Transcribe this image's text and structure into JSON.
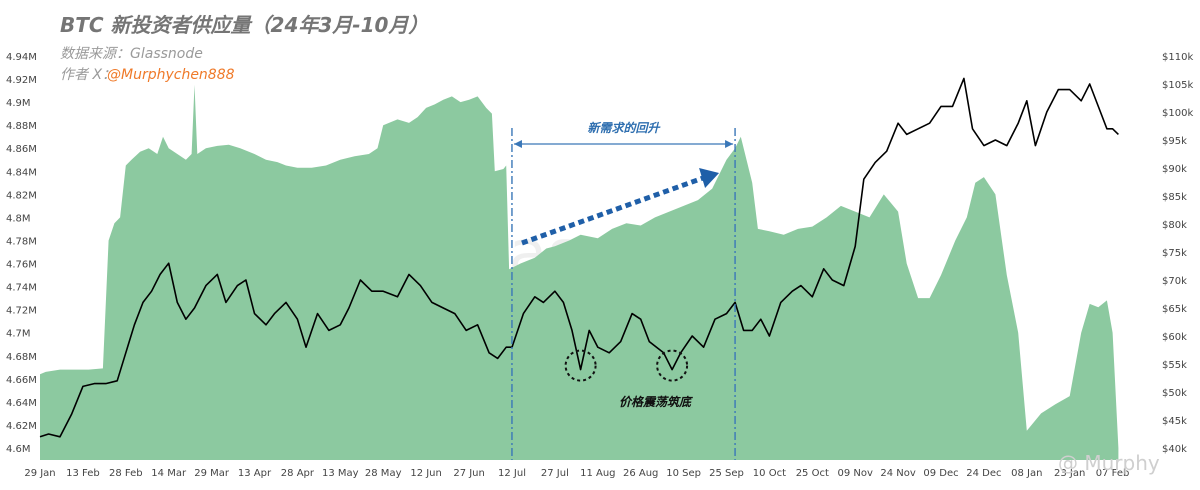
{
  "chart_data": {
    "type": "area",
    "title": "BTC 新投资者供应量（24年3月-10月）",
    "source_label": "数据来源：Glassnode",
    "author_prefix": "作者 X：",
    "author_handle": "@Murphychen888",
    "watermark": "glassnode",
    "corner_watermark": "@ Murphy",
    "x_tick_labels": [
      "29 Jan",
      "13 Feb",
      "28 Feb",
      "14 Mar",
      "29 Mar",
      "13 Apr",
      "28 Apr",
      "13 May",
      "28 May",
      "12 Jun",
      "27 Jun",
      "12 Jul",
      "27 Jul",
      "11 Aug",
      "26 Aug",
      "10 Sep",
      "25 Sep",
      "10 Oct",
      "25 Oct",
      "09 Nov",
      "24 Nov",
      "09 Dec",
      "24 Dec",
      "08 Jan",
      "23 Jan",
      "07 Feb"
    ],
    "y_left_ticks": [
      "4.94M",
      "4.92M",
      "4.9M",
      "4.88M",
      "4.86M",
      "4.84M",
      "4.82M",
      "4.8M",
      "4.78M",
      "4.76M",
      "4.74M",
      "4.72M",
      "4.7M",
      "4.68M",
      "4.66M",
      "4.64M",
      "4.62M",
      "4.6M"
    ],
    "y_right_ticks": [
      "$110k",
      "$105k",
      "$100k",
      "$95k",
      "$90k",
      "$85k",
      "$80k",
      "$75k",
      "$70k",
      "$65k",
      "$60k",
      "$55k",
      "$50k",
      "$45k",
      "$40k"
    ],
    "ylim_left": [
      4.6,
      4.94
    ],
    "ylim_right": [
      40000,
      110000
    ],
    "series": [
      {
        "name": "",
        "axis": "left",
        "color": "#8cc9a0",
        "points": [
          [
            "29 Jan",
            4.664
          ],
          [
            "31 Jan",
            4.666
          ],
          [
            "5 Feb",
            4.668
          ],
          [
            "10 Feb",
            4.668
          ],
          [
            "15 Feb",
            4.668
          ],
          [
            "20 Feb",
            4.669
          ],
          [
            "22 Feb",
            4.78
          ],
          [
            "24 Feb",
            4.795
          ],
          [
            "26 Feb",
            4.8
          ],
          [
            "28 Feb",
            4.845
          ],
          [
            "1 Mar",
            4.85
          ],
          [
            "4 Mar",
            4.857
          ],
          [
            "7 Mar",
            4.86
          ],
          [
            "10 Mar",
            4.855
          ],
          [
            "12 Mar",
            4.87
          ],
          [
            "14 Mar",
            4.86
          ],
          [
            "17 Mar",
            4.855
          ],
          [
            "20 Mar",
            4.85
          ],
          [
            "22 Mar",
            4.855
          ],
          [
            "23 Mar",
            4.915
          ],
          [
            "24 Mar",
            4.855
          ],
          [
            "27 Mar",
            4.86
          ],
          [
            "31 Mar",
            4.862
          ],
          [
            "4 Apr",
            4.863
          ],
          [
            "8 Apr",
            4.86
          ],
          [
            "13 Apr",
            4.855
          ],
          [
            "17 Apr",
            4.85
          ],
          [
            "21 Apr",
            4.848
          ],
          [
            "24 Apr",
            4.845
          ],
          [
            "28 Apr",
            4.843
          ],
          [
            "3 May",
            4.843
          ],
          [
            "8 May",
            4.845
          ],
          [
            "13 May",
            4.85
          ],
          [
            "18 May",
            4.853
          ],
          [
            "23 May",
            4.855
          ],
          [
            "26 May",
            4.86
          ],
          [
            "28 May",
            4.88
          ],
          [
            "2 Jun",
            4.885
          ],
          [
            "6 Jun",
            4.882
          ],
          [
            "9 Jun",
            4.887
          ],
          [
            "12 Jun",
            4.895
          ],
          [
            "15 Jun",
            4.898
          ],
          [
            "18 Jun",
            4.902
          ],
          [
            "21 Jun",
            4.905
          ],
          [
            "24 Jun",
            4.9
          ],
          [
            "27 Jun",
            4.902
          ],
          [
            "30 Jun",
            4.905
          ],
          [
            "3 Jul",
            4.895
          ],
          [
            "5 Jul",
            4.89
          ],
          [
            "6 Jul",
            4.84
          ],
          [
            "9 Jul",
            4.842
          ],
          [
            "10 Jul",
            4.845
          ],
          [
            "11 Jul",
            4.755
          ],
          [
            "15 Jul",
            4.76
          ],
          [
            "20 Jul",
            4.765
          ],
          [
            "24 Jul",
            4.773
          ],
          [
            "27 Jul",
            4.775
          ],
          [
            "1 Aug",
            4.78
          ],
          [
            "5 Aug",
            4.785
          ],
          [
            "11 Aug",
            4.782
          ],
          [
            "16 Aug",
            4.79
          ],
          [
            "21 Aug",
            4.795
          ],
          [
            "26 Aug",
            4.793
          ],
          [
            "31 Aug",
            4.8
          ],
          [
            "5 Sep",
            4.805
          ],
          [
            "10 Sep",
            4.81
          ],
          [
            "15 Sep",
            4.815
          ],
          [
            "20 Sep",
            4.825
          ],
          [
            "25 Sep",
            4.85
          ],
          [
            "28 Sep",
            4.86
          ],
          [
            "30 Sep",
            4.87
          ],
          [
            "2 Oct",
            4.85
          ],
          [
            "4 Oct",
            4.83
          ],
          [
            "6 Oct",
            4.79
          ],
          [
            "10 Oct",
            4.788
          ],
          [
            "15 Oct",
            4.785
          ],
          [
            "20 Oct",
            4.79
          ],
          [
            "25 Oct",
            4.792
          ],
          [
            "30 Oct",
            4.8
          ],
          [
            "4 Nov",
            4.81
          ],
          [
            "9 Nov",
            4.805
          ],
          [
            "14 Nov",
            4.8
          ],
          [
            "19 Nov",
            4.82
          ],
          [
            "24 Nov",
            4.805
          ],
          [
            "27 Nov",
            4.76
          ],
          [
            "1 Dec",
            4.73
          ],
          [
            "5 Dec",
            4.73
          ],
          [
            "9 Dec",
            4.75
          ],
          [
            "14 Dec",
            4.78
          ],
          [
            "18 Dec",
            4.8
          ],
          [
            "21 Dec",
            4.83
          ],
          [
            "24 Dec",
            4.835
          ],
          [
            "28 Dec",
            4.82
          ],
          [
            "1 Jan",
            4.75
          ],
          [
            "5 Jan",
            4.7
          ],
          [
            "8 Jan",
            4.615
          ],
          [
            "13 Jan",
            4.63
          ],
          [
            "18 Jan",
            4.638
          ],
          [
            "23 Jan",
            4.645
          ],
          [
            "27 Jan",
            4.7
          ],
          [
            "30 Jan",
            4.725
          ],
          [
            "2 Feb",
            4.722
          ],
          [
            "5 Feb",
            4.728
          ],
          [
            "7 Feb",
            4.7
          ],
          [
            "9 Feb",
            4.6
          ]
        ]
      },
      {
        "name": "",
        "axis": "right",
        "color": "#000000",
        "points": [
          [
            "29 Jan",
            42000
          ],
          [
            "1 Feb",
            42500
          ],
          [
            "5 Feb",
            42000
          ],
          [
            "9 Feb",
            46000
          ],
          [
            "13 Feb",
            51000
          ],
          [
            "17 Feb",
            51500
          ],
          [
            "21 Feb",
            51500
          ],
          [
            "25 Feb",
            52000
          ],
          [
            "28 Feb",
            57000
          ],
          [
            "2 Mar",
            62000
          ],
          [
            "5 Mar",
            66000
          ],
          [
            "8 Mar",
            68000
          ],
          [
            "11 Mar",
            71000
          ],
          [
            "14 Mar",
            73000
          ],
          [
            "17 Mar",
            66000
          ],
          [
            "20 Mar",
            63000
          ],
          [
            "23 Mar",
            65000
          ],
          [
            "27 Mar",
            69000
          ],
          [
            "31 Mar",
            71000
          ],
          [
            "3 Apr",
            66000
          ],
          [
            "7 Apr",
            69000
          ],
          [
            "10 Apr",
            70000
          ],
          [
            "13 Apr",
            64000
          ],
          [
            "17 Apr",
            62000
          ],
          [
            "20 Apr",
            64000
          ],
          [
            "24 Apr",
            66000
          ],
          [
            "28 Apr",
            63000
          ],
          [
            "1 May",
            58000
          ],
          [
            "5 May",
            64000
          ],
          [
            "9 May",
            61000
          ],
          [
            "13 May",
            62000
          ],
          [
            "16 May",
            65000
          ],
          [
            "20 May",
            70000
          ],
          [
            "24 May",
            68000
          ],
          [
            "28 May",
            68000
          ],
          [
            "2 Jun",
            67000
          ],
          [
            "6 Jun",
            71000
          ],
          [
            "10 Jun",
            69000
          ],
          [
            "14 Jun",
            66000
          ],
          [
            "18 Jun",
            65000
          ],
          [
            "22 Jun",
            64000
          ],
          [
            "26 Jun",
            61000
          ],
          [
            "30 Jun",
            62000
          ],
          [
            "4 Jul",
            57000
          ],
          [
            "7 Jul",
            56000
          ],
          [
            "10 Jul",
            58000
          ],
          [
            "12 Jul",
            58000
          ],
          [
            "16 Jul",
            64000
          ],
          [
            "20 Jul",
            67000
          ],
          [
            "23 Jul",
            66000
          ],
          [
            "27 Jul",
            68000
          ],
          [
            "30 Jul",
            66000
          ],
          [
            "2 Aug",
            61000
          ],
          [
            "5 Aug",
            54000
          ],
          [
            "8 Aug",
            61000
          ],
          [
            "11 Aug",
            58000
          ],
          [
            "15 Aug",
            57000
          ],
          [
            "19 Aug",
            59000
          ],
          [
            "23 Aug",
            64000
          ],
          [
            "26 Aug",
            63000
          ],
          [
            "29 Aug",
            59000
          ],
          [
            "3 Sep",
            57000
          ],
          [
            "6 Sep",
            54000
          ],
          [
            "9 Sep",
            57000
          ],
          [
            "13 Sep",
            60000
          ],
          [
            "17 Sep",
            58000
          ],
          [
            "21 Sep",
            63000
          ],
          [
            "25 Sep",
            64000
          ],
          [
            "28 Sep",
            66000
          ],
          [
            "1 Oct",
            61000
          ],
          [
            "4 Oct",
            61000
          ],
          [
            "7 Oct",
            63000
          ],
          [
            "10 Oct",
            60000
          ],
          [
            "14 Oct",
            66000
          ],
          [
            "18 Oct",
            68000
          ],
          [
            "21 Oct",
            69000
          ],
          [
            "25 Oct",
            67000
          ],
          [
            "29 Oct",
            72000
          ],
          [
            "1 Nov",
            70000
          ],
          [
            "5 Nov",
            69000
          ],
          [
            "9 Nov",
            76000
          ],
          [
            "12 Nov",
            88000
          ],
          [
            "16 Nov",
            91000
          ],
          [
            "20 Nov",
            93000
          ],
          [
            "24 Nov",
            98000
          ],
          [
            "27 Nov",
            96000
          ],
          [
            "1 Dec",
            97000
          ],
          [
            "5 Dec",
            98000
          ],
          [
            "9 Dec",
            101000
          ],
          [
            "13 Dec",
            101000
          ],
          [
            "17 Dec",
            106000
          ],
          [
            "20 Dec",
            97000
          ],
          [
            "24 Dec",
            94000
          ],
          [
            "28 Dec",
            95000
          ],
          [
            "1 Jan",
            94000
          ],
          [
            "5 Jan",
            98000
          ],
          [
            "8 Jan",
            102000
          ],
          [
            "11 Jan",
            94000
          ],
          [
            "15 Jan",
            100000
          ],
          [
            "19 Jan",
            104000
          ],
          [
            "23 Jan",
            104000
          ],
          [
            "27 Jan",
            102000
          ],
          [
            "30 Jan",
            105000
          ],
          [
            "2 Feb",
            101000
          ],
          [
            "5 Feb",
            97000
          ],
          [
            "7 Feb",
            97000
          ],
          [
            "9 Feb",
            96000
          ]
        ]
      }
    ],
    "annotations": {
      "demand_label": "新需求的回升",
      "demand_range": [
        "12 Jul",
        "28 Sep"
      ],
      "bottom_label": "价格震荡筑底",
      "bottom_circles": [
        "5 Aug",
        "6 Sep"
      ]
    },
    "grid": false,
    "legend": "none"
  }
}
